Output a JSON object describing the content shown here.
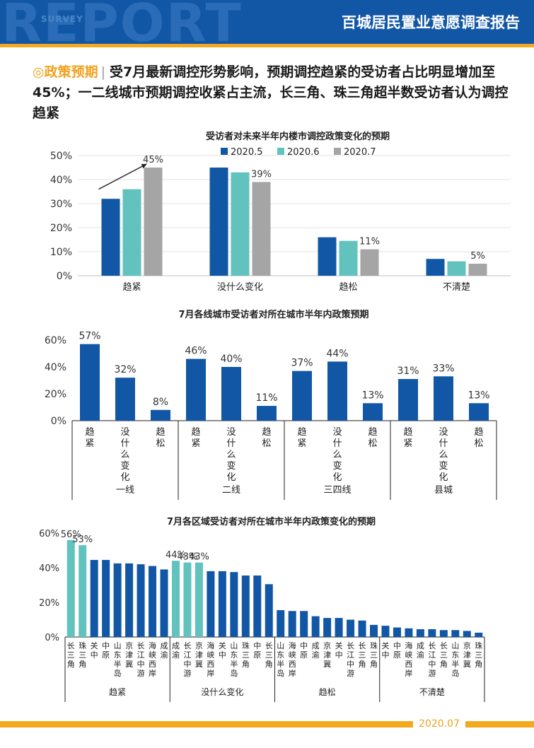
{
  "header": {
    "watermark": "REPORT",
    "watermark_sub": "SURVEY",
    "title": "百城居民置业意愿调查报告"
  },
  "headline": {
    "tag": "◎政策预期",
    "separator": "|",
    "text": "受7月最新调控形势影响，预期调控趋紧的受访者占比明显增加至45%；一二线城市预期调控收紧占主流，长三角、珠三角超半数受访者认为调控趋紧"
  },
  "footer": {
    "date": "2020.07"
  },
  "colors": {
    "dark_blue": "#1257a5",
    "teal": "#62c2be",
    "gray": "#a5a5a5",
    "orange": "#f4a81d"
  },
  "chart_data": [
    {
      "type": "bar",
      "title": "受访者对未来半年内楼市调控政策变化的预期",
      "categories": [
        "趋紧",
        "没什么变化",
        "趋松",
        "不清楚"
      ],
      "series": [
        {
          "name": "2020.5",
          "color": "#1257a5",
          "values": [
            32,
            45,
            16,
            7
          ]
        },
        {
          "name": "2020.6",
          "color": "#62c2be",
          "values": [
            36,
            43,
            14.5,
            6
          ]
        },
        {
          "name": "2020.7",
          "color": "#a5a5a5",
          "values": [
            45,
            39,
            11,
            5
          ]
        }
      ],
      "data_labels": [
        "45%",
        "39%",
        "11%",
        "5%"
      ],
      "ylim": [
        0,
        50
      ],
      "yticks": [
        "0%",
        "10%",
        "20%",
        "30%",
        "40%",
        "50%"
      ],
      "legend": "top"
    },
    {
      "type": "bar",
      "title": "7月各线城市受访者对所在城市半年内政策预期",
      "groups": [
        {
          "name": "一线",
          "categories": [
            "趋紧",
            "没什么变化",
            "趋松"
          ],
          "values": [
            57,
            32,
            8
          ],
          "labels": [
            "57%",
            "32%",
            "8%"
          ]
        },
        {
          "name": "二线",
          "categories": [
            "趋紧",
            "没什么变化",
            "趋松"
          ],
          "values": [
            46,
            40,
            11
          ],
          "labels": [
            "46%",
            "40%",
            "11%"
          ]
        },
        {
          "name": "三四线",
          "categories": [
            "趋紧",
            "没什么变化",
            "趋松"
          ],
          "values": [
            37,
            44,
            13
          ],
          "labels": [
            "37%",
            "44%",
            "13%"
          ]
        },
        {
          "name": "县城",
          "categories": [
            "趋紧",
            "没什么变化",
            "趋松"
          ],
          "values": [
            31,
            33,
            13
          ],
          "labels": [
            "31%",
            "33%",
            "13%"
          ]
        }
      ],
      "ylim": [
        0,
        60
      ],
      "yticks": [
        "0%",
        "20%",
        "40%",
        "60%"
      ]
    },
    {
      "type": "bar",
      "title": "7月各区域受访者对所在城市半年内政策变化的预期",
      "groups": [
        {
          "name": "趋紧",
          "categories": [
            "长三角",
            "珠三角",
            "关中",
            "中原",
            "山东半岛",
            "京津冀",
            "长江中游",
            "海峡西岸",
            "成渝"
          ],
          "values": [
            56,
            53,
            44.5,
            44.5,
            42.5,
            42.5,
            42,
            41,
            39
          ],
          "labels": [
            "56%",
            "53%",
            "",
            "",
            "",
            "",
            "",
            "",
            ""
          ],
          "highlight": [
            true,
            true,
            false,
            false,
            false,
            false,
            false,
            false,
            false
          ]
        },
        {
          "name": "没什么变化",
          "categories": [
            "成渝",
            "长江中游",
            "京津冀",
            "海峡西岸",
            "关中",
            "山东半岛",
            "珠三角",
            "中原",
            "长三角"
          ],
          "values": [
            44,
            43,
            43,
            38,
            38,
            37.5,
            35.5,
            35.5,
            30.5
          ],
          "labels": [
            "44%",
            "43%",
            "43%",
            "",
            "",
            "",
            "",
            "",
            ""
          ],
          "highlight": [
            true,
            true,
            true,
            false,
            false,
            false,
            false,
            false,
            false
          ]
        },
        {
          "name": "趋松",
          "categories": [
            "山东半岛",
            "海峡西岸",
            "中原",
            "成渝",
            "京津冀",
            "关中",
            "长江中游",
            "长三角",
            "珠三角"
          ],
          "values": [
            15.5,
            15,
            15,
            12,
            11,
            11,
            10,
            9.5,
            7
          ],
          "labels": [
            "",
            "",
            "",
            "",
            "",
            "",
            "",
            "",
            ""
          ],
          "highlight": [
            false,
            false,
            false,
            false,
            false,
            false,
            false,
            false,
            false
          ]
        },
        {
          "name": "不清楚",
          "categories": [
            "关中",
            "中原",
            "海峡西岸",
            "成渝",
            "长江中游",
            "长三角",
            "山东半岛",
            "京津冀",
            "珠三角"
          ],
          "values": [
            6.5,
            5.5,
            5,
            4.5,
            4.5,
            4,
            4,
            3.5,
            2.5
          ],
          "labels": [
            "",
            "",
            "",
            "",
            "",
            "",
            "",
            "",
            ""
          ],
          "highlight": [
            false,
            false,
            false,
            false,
            false,
            false,
            false,
            false,
            false
          ]
        }
      ],
      "ylim": [
        0,
        60
      ],
      "yticks": [
        "0%",
        "20%",
        "40%",
        "60%"
      ]
    }
  ]
}
